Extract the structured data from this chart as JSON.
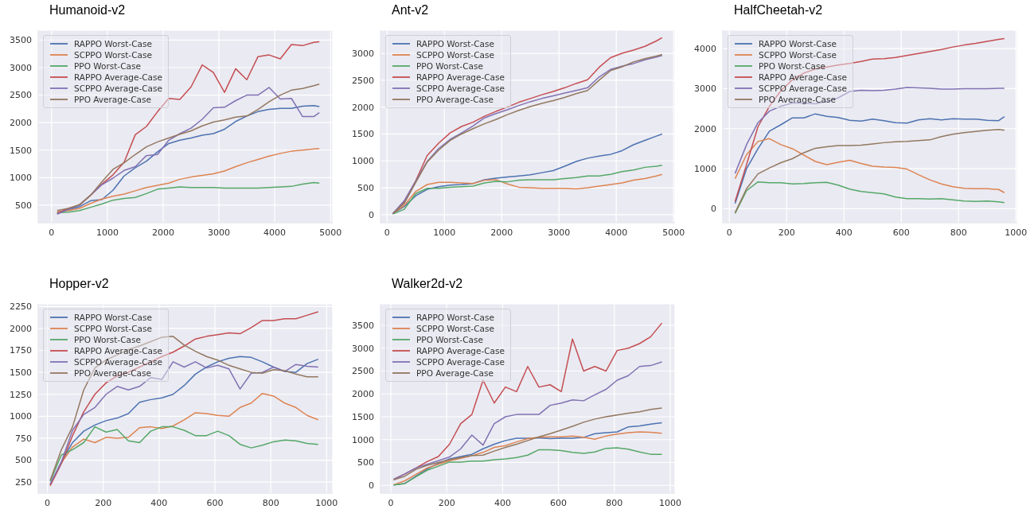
{
  "chart_data": [
    {
      "type": "line",
      "title": "Humanoid-v2",
      "grid": true,
      "legend": "top left",
      "xlim": [
        -240,
        5040
      ],
      "xticks": [
        0,
        1000,
        2000,
        3000,
        4000,
        5000
      ],
      "ylim": [
        180,
        3680
      ],
      "yticks": [
        500,
        1000,
        1500,
        2000,
        2500,
        3000,
        3500
      ],
      "x": [
        100,
        300,
        500,
        700,
        900,
        1100,
        1300,
        1500,
        1700,
        1900,
        2100,
        2300,
        2500,
        2700,
        2900,
        3100,
        3300,
        3500,
        3700,
        3900,
        4100,
        4300,
        4500,
        4700,
        4800
      ],
      "series": [
        {
          "name": "RAPPO Worst-Case",
          "color": "#4c72b0",
          "values": [
            340,
            420,
            470,
            580,
            600,
            770,
            1030,
            1180,
            1300,
            1470,
            1620,
            1680,
            1720,
            1770,
            1800,
            1880,
            2020,
            2120,
            2200,
            2240,
            2260,
            2260,
            2300,
            2310,
            2290
          ]
        },
        {
          "name": "SCPPO Worst-Case",
          "color": "#dd8452",
          "values": [
            380,
            400,
            440,
            530,
            610,
            660,
            700,
            760,
            820,
            860,
            900,
            970,
            1010,
            1040,
            1070,
            1120,
            1200,
            1270,
            1330,
            1390,
            1440,
            1480,
            1500,
            1520,
            1530
          ]
        },
        {
          "name": "PPO Worst-Case",
          "color": "#55a868",
          "values": [
            360,
            370,
            400,
            460,
            520,
            590,
            620,
            640,
            710,
            790,
            810,
            830,
            820,
            820,
            820,
            810,
            810,
            810,
            810,
            820,
            830,
            840,
            880,
            910,
            900
          ]
        },
        {
          "name": "RAPPO Average-Case",
          "color": "#c44e52",
          "values": [
            350,
            440,
            500,
            680,
            880,
            1050,
            1280,
            1780,
            1930,
            2200,
            2440,
            2420,
            2650,
            3050,
            2910,
            2550,
            2980,
            2780,
            3200,
            3230,
            3160,
            3420,
            3400,
            3460,
            3470
          ]
        },
        {
          "name": "SCPPO Average-Case",
          "color": "#8172b3",
          "values": [
            340,
            420,
            500,
            680,
            870,
            990,
            1130,
            1200,
            1400,
            1420,
            1680,
            1800,
            1900,
            2060,
            2270,
            2280,
            2400,
            2500,
            2500,
            2640,
            2430,
            2440,
            2110,
            2110,
            2180
          ]
        },
        {
          "name": "PPO Average-Case",
          "color": "#937860",
          "values": [
            400,
            440,
            510,
            680,
            920,
            1150,
            1270,
            1420,
            1560,
            1650,
            1720,
            1790,
            1850,
            1940,
            2010,
            2050,
            2100,
            2120,
            2240,
            2380,
            2500,
            2590,
            2620,
            2670,
            2700
          ]
        }
      ]
    },
    {
      "type": "line",
      "title": "Ant-v2",
      "grid": true,
      "legend": "top left",
      "xlim": [
        -115,
        5025
      ],
      "xticks": [
        0,
        1000,
        2000,
        3000,
        4000,
        5000
      ],
      "ylim": [
        -150,
        3430
      ],
      "yticks": [
        0,
        500,
        1000,
        1500,
        2000,
        2500,
        3000
      ],
      "x": [
        100,
        300,
        500,
        700,
        900,
        1100,
        1300,
        1500,
        1700,
        1900,
        2100,
        2300,
        2500,
        2700,
        2900,
        3100,
        3300,
        3500,
        3700,
        3900,
        4100,
        4300,
        4500,
        4700,
        4800
      ],
      "series": [
        {
          "name": "RAPPO Worst-Case",
          "color": "#4c72b0",
          "values": [
            20,
            150,
            350,
            470,
            520,
            550,
            560,
            580,
            650,
            680,
            700,
            720,
            740,
            780,
            820,
            900,
            990,
            1050,
            1090,
            1120,
            1190,
            1300,
            1380,
            1460,
            1500
          ]
        },
        {
          "name": "SCPPO Worst-Case",
          "color": "#dd8452",
          "values": [
            20,
            170,
            430,
            560,
            600,
            600,
            590,
            580,
            640,
            650,
            570,
            510,
            500,
            490,
            490,
            490,
            480,
            500,
            530,
            560,
            590,
            640,
            670,
            720,
            750
          ]
        },
        {
          "name": "PPO Worst-Case",
          "color": "#55a868",
          "values": [
            10,
            100,
            390,
            490,
            490,
            510,
            520,
            530,
            590,
            620,
            610,
            640,
            650,
            650,
            650,
            670,
            690,
            720,
            720,
            750,
            800,
            830,
            880,
            900,
            920
          ]
        },
        {
          "name": "RAPPO Average-Case",
          "color": "#c44e52",
          "values": [
            20,
            240,
            630,
            1100,
            1330,
            1520,
            1640,
            1720,
            1830,
            1920,
            2000,
            2090,
            2160,
            2230,
            2290,
            2360,
            2440,
            2510,
            2740,
            2920,
            3000,
            3060,
            3130,
            3230,
            3290
          ]
        },
        {
          "name": "SCPPO Average-Case",
          "color": "#8172b3",
          "values": [
            20,
            260,
            620,
            990,
            1230,
            1400,
            1520,
            1650,
            1800,
            1880,
            1950,
            2030,
            2100,
            2160,
            2210,
            2260,
            2310,
            2360,
            2560,
            2700,
            2760,
            2810,
            2880,
            2930,
            2960
          ]
        },
        {
          "name": "PPO Average-Case",
          "color": "#937860",
          "values": [
            20,
            210,
            600,
            980,
            1200,
            1380,
            1500,
            1600,
            1690,
            1770,
            1860,
            1940,
            2010,
            2070,
            2120,
            2180,
            2250,
            2310,
            2500,
            2680,
            2750,
            2840,
            2900,
            2950,
            2980
          ]
        }
      ]
    },
    {
      "type": "line",
      "title": "HalfCheetah-v2",
      "grid": true,
      "legend": "top left",
      "xlim": [
        -23,
        1005
      ],
      "xticks": [
        0,
        200,
        400,
        600,
        800,
        1000
      ],
      "ylim": [
        -350,
        4460
      ],
      "yticks": [
        0,
        1000,
        2000,
        3000,
        4000
      ],
      "x": [
        20,
        60,
        100,
        140,
        180,
        220,
        260,
        300,
        340,
        380,
        420,
        460,
        500,
        540,
        580,
        620,
        660,
        700,
        740,
        780,
        820,
        860,
        900,
        940,
        960
      ],
      "series": [
        {
          "name": "RAPPO Worst-Case",
          "color": "#4c72b0",
          "values": [
            130,
            1000,
            1500,
            1940,
            2100,
            2270,
            2270,
            2370,
            2310,
            2280,
            2210,
            2190,
            2240,
            2200,
            2150,
            2140,
            2220,
            2250,
            2220,
            2250,
            2240,
            2240,
            2210,
            2200,
            2300
          ]
        },
        {
          "name": "SCPPO Worst-Case",
          "color": "#dd8452",
          "values": [
            750,
            1350,
            1680,
            1750,
            1600,
            1500,
            1340,
            1180,
            1100,
            1160,
            1210,
            1130,
            1060,
            1040,
            1030,
            990,
            850,
            720,
            620,
            550,
            510,
            500,
            500,
            480,
            400
          ]
        },
        {
          "name": "PPO Worst-Case",
          "color": "#55a868",
          "values": [
            -120,
            450,
            670,
            650,
            650,
            620,
            630,
            650,
            660,
            590,
            490,
            430,
            400,
            370,
            290,
            250,
            250,
            240,
            250,
            220,
            190,
            180,
            190,
            170,
            150
          ]
        },
        {
          "name": "RAPPO Average-Case",
          "color": "#c44e52",
          "values": [
            180,
            1100,
            2050,
            2560,
            2950,
            3220,
            3390,
            3490,
            3540,
            3590,
            3630,
            3680,
            3740,
            3750,
            3780,
            3830,
            3880,
            3930,
            3980,
            4040,
            4090,
            4130,
            4180,
            4230,
            4250
          ]
        },
        {
          "name": "SCPPO Average-Case",
          "color": "#8172b3",
          "values": [
            880,
            1600,
            2150,
            2440,
            2560,
            2640,
            2640,
            2620,
            2680,
            2770,
            2930,
            2960,
            2950,
            2960,
            2990,
            3030,
            3020,
            3010,
            2990,
            2990,
            3000,
            3000,
            3000,
            3010,
            3010
          ]
        },
        {
          "name": "PPO Average-Case",
          "color": "#937860",
          "values": [
            -100,
            500,
            870,
            1020,
            1150,
            1250,
            1400,
            1510,
            1550,
            1580,
            1580,
            1590,
            1620,
            1650,
            1670,
            1680,
            1700,
            1720,
            1800,
            1860,
            1900,
            1930,
            1960,
            1980,
            1960
          ]
        }
      ]
    },
    {
      "type": "line",
      "title": "Hopper-v2",
      "grid": true,
      "legend": "top left",
      "xlim": [
        -33,
        1022
      ],
      "xticks": [
        0,
        200,
        400,
        600,
        800,
        1000
      ],
      "ylim": [
        125,
        2280
      ],
      "yticks": [
        250,
        500,
        750,
        1000,
        1250,
        1500,
        1750,
        2000,
        2250
      ],
      "x": [
        10,
        50,
        90,
        130,
        170,
        210,
        250,
        290,
        330,
        370,
        410,
        450,
        490,
        530,
        570,
        610,
        650,
        690,
        730,
        770,
        810,
        850,
        890,
        930,
        970
      ],
      "series": [
        {
          "name": "RAPPO Worst-Case",
          "color": "#4c72b0",
          "values": [
            220,
            480,
            700,
            830,
            900,
            950,
            980,
            1030,
            1160,
            1190,
            1210,
            1250,
            1350,
            1480,
            1560,
            1620,
            1660,
            1680,
            1670,
            1620,
            1560,
            1510,
            1500,
            1600,
            1650
          ]
        },
        {
          "name": "SCPPO Worst-Case",
          "color": "#dd8452",
          "values": [
            220,
            470,
            650,
            740,
            700,
            760,
            750,
            760,
            870,
            880,
            860,
            890,
            960,
            1040,
            1030,
            1010,
            1000,
            1100,
            1150,
            1260,
            1230,
            1150,
            1100,
            1010,
            960
          ]
        },
        {
          "name": "PPO Worst-Case",
          "color": "#55a868",
          "values": [
            260,
            560,
            620,
            700,
            880,
            820,
            850,
            720,
            700,
            830,
            880,
            880,
            840,
            780,
            780,
            830,
            780,
            680,
            640,
            670,
            710,
            730,
            720,
            690,
            680
          ]
        },
        {
          "name": "RAPPO Average-Case",
          "color": "#c44e52",
          "values": [
            210,
            460,
            780,
            1050,
            1250,
            1380,
            1460,
            1500,
            1560,
            1620,
            1680,
            1730,
            1800,
            1880,
            1910,
            1930,
            1950,
            1940,
            2010,
            2090,
            2090,
            2110,
            2110,
            2150,
            2190
          ]
        },
        {
          "name": "SCPPO Average-Case",
          "color": "#8172b3",
          "values": [
            230,
            480,
            840,
            1020,
            1100,
            1250,
            1340,
            1300,
            1340,
            1440,
            1420,
            1620,
            1560,
            1620,
            1550,
            1580,
            1540,
            1310,
            1490,
            1500,
            1560,
            1510,
            1590,
            1570,
            1560
          ]
        },
        {
          "name": "PPO Average-Case",
          "color": "#937860",
          "values": [
            270,
            620,
            880,
            1300,
            1550,
            1640,
            1700,
            1760,
            1800,
            1850,
            1900,
            1910,
            1810,
            1740,
            1680,
            1640,
            1580,
            1540,
            1500,
            1490,
            1530,
            1520,
            1480,
            1450,
            1450
          ]
        }
      ]
    },
    {
      "type": "line",
      "title": "Walker2d-v2",
      "grid": true,
      "legend": "top left",
      "xlim": [
        -37,
        1017
      ],
      "xticks": [
        0,
        200,
        400,
        600,
        800,
        1000
      ],
      "ylim": [
        -170,
        3970
      ],
      "yticks": [
        0,
        500,
        1000,
        1500,
        2000,
        2500,
        3000,
        3500
      ],
      "x": [
        10,
        50,
        90,
        130,
        170,
        210,
        250,
        290,
        330,
        370,
        410,
        450,
        490,
        530,
        570,
        610,
        650,
        690,
        730,
        770,
        810,
        850,
        890,
        930,
        970
      ],
      "series": [
        {
          "name": "RAPPO Worst-Case",
          "color": "#4c72b0",
          "values": [
            10,
            40,
            200,
            360,
            480,
            580,
            630,
            680,
            800,
            900,
            980,
            1030,
            1030,
            1040,
            1020,
            1030,
            1030,
            1050,
            1130,
            1150,
            1170,
            1280,
            1300,
            1340,
            1370
          ]
        },
        {
          "name": "SCPPO Worst-Case",
          "color": "#dd8452",
          "values": [
            10,
            100,
            240,
            380,
            460,
            540,
            590,
            650,
            720,
            830,
            870,
            950,
            1020,
            1050,
            1060,
            1060,
            1080,
            1050,
            1010,
            1080,
            1120,
            1150,
            1170,
            1160,
            1140
          ]
        },
        {
          "name": "PPO Worst-Case",
          "color": "#55a868",
          "values": [
            10,
            40,
            190,
            330,
            420,
            510,
            510,
            530,
            530,
            560,
            580,
            610,
            660,
            780,
            780,
            760,
            720,
            700,
            730,
            810,
            820,
            790,
            730,
            680,
            680
          ]
        },
        {
          "name": "RAPPO Average-Case",
          "color": "#c44e52",
          "values": [
            130,
            250,
            380,
            520,
            630,
            900,
            1350,
            1550,
            2300,
            1800,
            2150,
            2050,
            2600,
            2150,
            2200,
            2050,
            3200,
            2500,
            2600,
            2500,
            2950,
            3000,
            3100,
            3250,
            3550
          ]
        },
        {
          "name": "SCPPO Average-Case",
          "color": "#8172b3",
          "values": [
            130,
            250,
            380,
            460,
            540,
            620,
            800,
            1100,
            880,
            1350,
            1500,
            1550,
            1550,
            1550,
            1750,
            1800,
            1870,
            1850,
            1980,
            2100,
            2300,
            2400,
            2600,
            2620,
            2700
          ]
        },
        {
          "name": "PPO Average-Case",
          "color": "#937860",
          "values": [
            120,
            200,
            350,
            440,
            500,
            560,
            610,
            650,
            660,
            750,
            830,
            900,
            980,
            1060,
            1130,
            1210,
            1290,
            1380,
            1450,
            1500,
            1540,
            1580,
            1610,
            1660,
            1690
          ]
        }
      ]
    }
  ]
}
